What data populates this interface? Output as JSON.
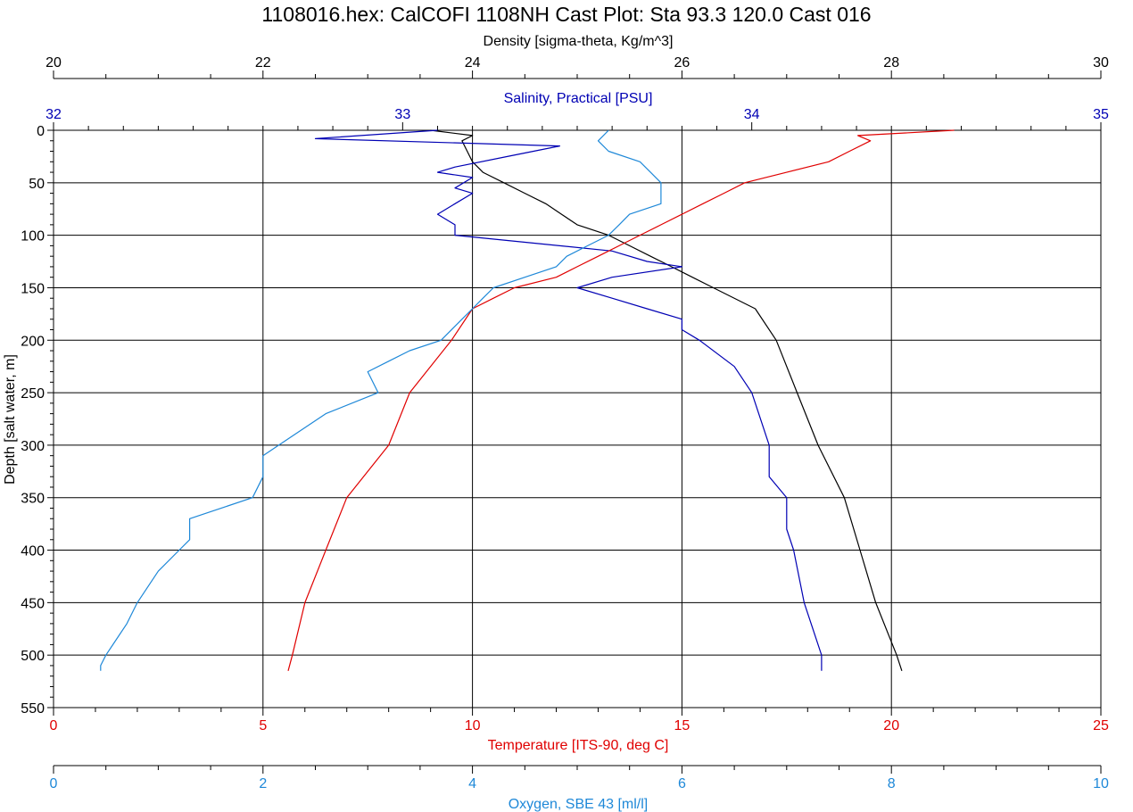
{
  "page": {
    "title": "1108016.hex: CalCOFI 1108NH Cast Plot: Sta 93.3 120.0 Cast 016"
  },
  "colors": {
    "density": "#000000",
    "salinity": "#0000b4",
    "temperature": "#e00000",
    "oxygen": "#1e88d8",
    "grid": "#000000"
  },
  "chart_data": {
    "type": "line",
    "title": "1108016.hex: CalCOFI 1108NH Cast Plot: Sta 93.3 120.0 Cast 016",
    "grid": true,
    "y_axis": {
      "label": "Depth [salt water, m]",
      "range": [
        0,
        550
      ],
      "inverted": true,
      "ticks": [
        "0",
        "50",
        "100",
        "150",
        "200",
        "250",
        "300",
        "350",
        "400",
        "450",
        "500",
        "550"
      ]
    },
    "axes": {
      "density": {
        "label": "Density [sigma-theta, Kg/m^3]",
        "range": [
          20,
          30
        ],
        "ticks": [
          "20",
          "22",
          "24",
          "26",
          "28",
          "30"
        ],
        "position": "top"
      },
      "salinity": {
        "label": "Salinity, Practical [PSU]",
        "range": [
          32,
          35
        ],
        "ticks": [
          "32",
          "33",
          "34",
          "35"
        ],
        "position": "top"
      },
      "temperature": {
        "label": "Temperature [ITS-90, deg C]",
        "range": [
          0,
          25
        ],
        "ticks": [
          "0",
          "5",
          "10",
          "15",
          "20",
          "25"
        ],
        "position": "bottom"
      },
      "oxygen": {
        "label": "Oxygen, SBE 43 [ml/l]",
        "range": [
          0,
          10
        ],
        "ticks": [
          "0",
          "2",
          "4",
          "6",
          "8",
          "10"
        ],
        "position": "bottom"
      }
    },
    "series": [
      {
        "axis": "density",
        "points": [
          [
            0,
            23.6
          ],
          [
            5,
            24.0
          ],
          [
            10,
            23.9
          ],
          [
            20,
            23.95
          ],
          [
            30,
            24.0
          ],
          [
            40,
            24.1
          ],
          [
            50,
            24.3
          ],
          [
            60,
            24.5
          ],
          [
            70,
            24.7
          ],
          [
            80,
            24.85
          ],
          [
            90,
            25.0
          ],
          [
            100,
            25.3
          ],
          [
            110,
            25.5
          ],
          [
            120,
            25.7
          ],
          [
            130,
            25.9
          ],
          [
            140,
            26.1
          ],
          [
            150,
            26.3
          ],
          [
            170,
            26.7
          ],
          [
            200,
            26.9
          ],
          [
            250,
            27.1
          ],
          [
            300,
            27.3
          ],
          [
            350,
            27.55
          ],
          [
            400,
            27.7
          ],
          [
            450,
            27.85
          ],
          [
            500,
            28.05
          ],
          [
            515,
            28.1
          ]
        ]
      },
      {
        "axis": "salinity",
        "points": [
          [
            0,
            33.1
          ],
          [
            8,
            32.75
          ],
          [
            15,
            33.45
          ],
          [
            25,
            33.3
          ],
          [
            35,
            33.15
          ],
          [
            40,
            33.1
          ],
          [
            45,
            33.2
          ],
          [
            55,
            33.15
          ],
          [
            60,
            33.2
          ],
          [
            70,
            33.15
          ],
          [
            80,
            33.1
          ],
          [
            90,
            33.15
          ],
          [
            100,
            33.15
          ],
          [
            105,
            33.3
          ],
          [
            115,
            33.6
          ],
          [
            125,
            33.7
          ],
          [
            130,
            33.8
          ],
          [
            140,
            33.6
          ],
          [
            150,
            33.5
          ],
          [
            160,
            33.6
          ],
          [
            170,
            33.7
          ],
          [
            180,
            33.8
          ],
          [
            190,
            33.8
          ],
          [
            200,
            33.85
          ],
          [
            225,
            33.95
          ],
          [
            250,
            34.0
          ],
          [
            300,
            34.05
          ],
          [
            310,
            34.05
          ],
          [
            330,
            34.05
          ],
          [
            350,
            34.1
          ],
          [
            380,
            34.1
          ],
          [
            400,
            34.12
          ],
          [
            450,
            34.15
          ],
          [
            500,
            34.2
          ],
          [
            515,
            34.2
          ]
        ]
      },
      {
        "axis": "temperature",
        "points": [
          [
            0,
            21.5
          ],
          [
            5,
            19.2
          ],
          [
            10,
            19.5
          ],
          [
            20,
            19.0
          ],
          [
            30,
            18.5
          ],
          [
            40,
            17.5
          ],
          [
            50,
            16.5
          ],
          [
            60,
            16.0
          ],
          [
            70,
            15.5
          ],
          [
            80,
            15.0
          ],
          [
            90,
            14.5
          ],
          [
            100,
            14.0
          ],
          [
            110,
            13.5
          ],
          [
            120,
            13.0
          ],
          [
            130,
            12.5
          ],
          [
            140,
            12.0
          ],
          [
            150,
            11.0
          ],
          [
            160,
            10.5
          ],
          [
            170,
            10.0
          ],
          [
            200,
            9.5
          ],
          [
            250,
            8.5
          ],
          [
            300,
            8.0
          ],
          [
            350,
            7.0
          ],
          [
            400,
            6.5
          ],
          [
            450,
            6.0
          ],
          [
            500,
            5.7
          ],
          [
            515,
            5.6
          ]
        ]
      },
      {
        "axis": "oxygen",
        "points": [
          [
            0,
            5.3
          ],
          [
            10,
            5.2
          ],
          [
            20,
            5.3
          ],
          [
            30,
            5.6
          ],
          [
            40,
            5.7
          ],
          [
            50,
            5.8
          ],
          [
            60,
            5.8
          ],
          [
            70,
            5.8
          ],
          [
            80,
            5.5
          ],
          [
            90,
            5.4
          ],
          [
            100,
            5.3
          ],
          [
            110,
            5.1
          ],
          [
            120,
            4.9
          ],
          [
            130,
            4.8
          ],
          [
            140,
            4.5
          ],
          [
            150,
            4.2
          ],
          [
            160,
            4.1
          ],
          [
            170,
            4.0
          ],
          [
            180,
            3.9
          ],
          [
            200,
            3.7
          ],
          [
            210,
            3.4
          ],
          [
            220,
            3.2
          ],
          [
            230,
            3.0
          ],
          [
            250,
            3.1
          ],
          [
            270,
            2.6
          ],
          [
            290,
            2.3
          ],
          [
            310,
            2.0
          ],
          [
            330,
            2.0
          ],
          [
            350,
            1.9
          ],
          [
            370,
            1.3
          ],
          [
            390,
            1.3
          ],
          [
            400,
            1.2
          ],
          [
            420,
            1.0
          ],
          [
            450,
            0.8
          ],
          [
            470,
            0.7
          ],
          [
            500,
            0.5
          ],
          [
            510,
            0.45
          ],
          [
            515,
            0.45
          ]
        ]
      }
    ]
  }
}
